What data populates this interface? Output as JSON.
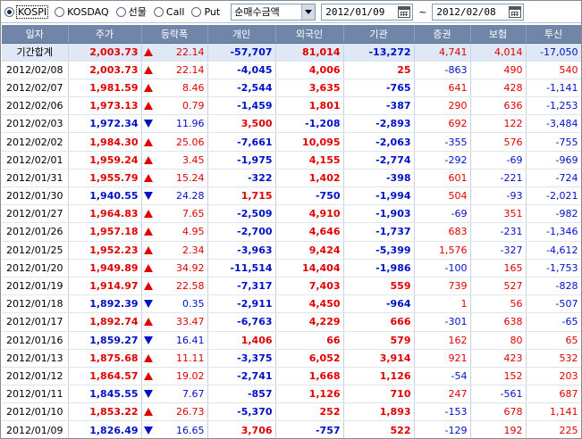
{
  "toolbar": {
    "radios": [
      {
        "label": "KOSPI",
        "selected": true
      },
      {
        "label": "KOSDAQ",
        "selected": false
      },
      {
        "label": "선물",
        "selected": false
      },
      {
        "label": "Call",
        "selected": false
      },
      {
        "label": "Put",
        "selected": false
      }
    ],
    "select_value": "순매수금액",
    "start_date": "2012/01/09",
    "tilde": "~",
    "end_date": "2012/02/08"
  },
  "colors": {
    "up": "#e00000",
    "down": "#0010c8",
    "header_bg": "#6f86a8",
    "total_bg": "#dfe8f5"
  },
  "table": {
    "headers": [
      "일자",
      "주가",
      "등락폭",
      "개인",
      "외국인",
      "기관",
      "증권",
      "보험",
      "투신"
    ],
    "rows": [
      {
        "date": "기간합계",
        "price": "2,003.73",
        "dir": "up",
        "change": "22.14",
        "personal": "-57,707",
        "foreign": "81,014",
        "inst": "-13,272",
        "sec": "4,741",
        "ins": "4,014",
        "trust": "-17,050",
        "total": true
      },
      {
        "date": "2012/02/08",
        "price": "2,003.73",
        "dir": "up",
        "change": "22.14",
        "personal": "-4,045",
        "foreign": "4,006",
        "inst": "25",
        "sec": "-863",
        "ins": "490",
        "trust": "540"
      },
      {
        "date": "2012/02/07",
        "price": "1,981.59",
        "dir": "up",
        "change": "8.46",
        "personal": "-2,544",
        "foreign": "3,635",
        "inst": "-765",
        "sec": "641",
        "ins": "428",
        "trust": "-1,141"
      },
      {
        "date": "2012/02/06",
        "price": "1,973.13",
        "dir": "up",
        "change": "0.79",
        "personal": "-1,459",
        "foreign": "1,801",
        "inst": "-387",
        "sec": "290",
        "ins": "636",
        "trust": "-1,253"
      },
      {
        "date": "2012/02/03",
        "price": "1,972.34",
        "dir": "down",
        "change": "11.96",
        "personal": "3,500",
        "foreign": "-1,208",
        "inst": "-2,893",
        "sec": "692",
        "ins": "122",
        "trust": "-3,484"
      },
      {
        "date": "2012/02/02",
        "price": "1,984.30",
        "dir": "up",
        "change": "25.06",
        "personal": "-7,661",
        "foreign": "10,095",
        "inst": "-2,063",
        "sec": "-355",
        "ins": "576",
        "trust": "-755"
      },
      {
        "date": "2012/02/01",
        "price": "1,959.24",
        "dir": "up",
        "change": "3.45",
        "personal": "-1,975",
        "foreign": "4,155",
        "inst": "-2,774",
        "sec": "-292",
        "ins": "-69",
        "trust": "-969"
      },
      {
        "date": "2012/01/31",
        "price": "1,955.79",
        "dir": "up",
        "change": "15.24",
        "personal": "-322",
        "foreign": "1,402",
        "inst": "-398",
        "sec": "601",
        "ins": "-221",
        "trust": "-724"
      },
      {
        "date": "2012/01/30",
        "price": "1,940.55",
        "dir": "down",
        "change": "24.28",
        "personal": "1,715",
        "foreign": "-750",
        "inst": "-1,994",
        "sec": "504",
        "ins": "-93",
        "trust": "-2,021"
      },
      {
        "date": "2012/01/27",
        "price": "1,964.83",
        "dir": "up",
        "change": "7.65",
        "personal": "-2,509",
        "foreign": "4,910",
        "inst": "-1,903",
        "sec": "-69",
        "ins": "351",
        "trust": "-982"
      },
      {
        "date": "2012/01/26",
        "price": "1,957.18",
        "dir": "up",
        "change": "4.95",
        "personal": "-2,700",
        "foreign": "4,646",
        "inst": "-1,737",
        "sec": "683",
        "ins": "-231",
        "trust": "-1,346"
      },
      {
        "date": "2012/01/25",
        "price": "1,952.23",
        "dir": "up",
        "change": "2.34",
        "personal": "-3,963",
        "foreign": "9,424",
        "inst": "-5,399",
        "sec": "1,576",
        "ins": "-327",
        "trust": "-4,612"
      },
      {
        "date": "2012/01/20",
        "price": "1,949.89",
        "dir": "up",
        "change": "34.92",
        "personal": "-11,514",
        "foreign": "14,404",
        "inst": "-1,986",
        "sec": "-100",
        "ins": "165",
        "trust": "-1,753"
      },
      {
        "date": "2012/01/19",
        "price": "1,914.97",
        "dir": "up",
        "change": "22.58",
        "personal": "-7,317",
        "foreign": "7,403",
        "inst": "559",
        "sec": "739",
        "ins": "527",
        "trust": "-828"
      },
      {
        "date": "2012/01/18",
        "price": "1,892.39",
        "dir": "down",
        "change": "0.35",
        "personal": "-2,911",
        "foreign": "4,450",
        "inst": "-964",
        "sec": "1",
        "ins": "56",
        "trust": "-507"
      },
      {
        "date": "2012/01/17",
        "price": "1,892.74",
        "dir": "up",
        "change": "33.47",
        "personal": "-6,763",
        "foreign": "4,229",
        "inst": "666",
        "sec": "-301",
        "ins": "638",
        "trust": "-65"
      },
      {
        "date": "2012/01/16",
        "price": "1,859.27",
        "dir": "down",
        "change": "16.41",
        "personal": "1,406",
        "foreign": "66",
        "inst": "579",
        "sec": "162",
        "ins": "80",
        "trust": "65"
      },
      {
        "date": "2012/01/13",
        "price": "1,875.68",
        "dir": "up",
        "change": "11.11",
        "personal": "-3,375",
        "foreign": "6,052",
        "inst": "3,914",
        "sec": "921",
        "ins": "423",
        "trust": "532"
      },
      {
        "date": "2012/01/12",
        "price": "1,864.57",
        "dir": "up",
        "change": "19.02",
        "personal": "-2,741",
        "foreign": "1,668",
        "inst": "1,126",
        "sec": "-54",
        "ins": "152",
        "trust": "203"
      },
      {
        "date": "2012/01/11",
        "price": "1,845.55",
        "dir": "down",
        "change": "7.67",
        "personal": "-857",
        "foreign": "1,126",
        "inst": "710",
        "sec": "247",
        "ins": "-561",
        "trust": "687"
      },
      {
        "date": "2012/01/10",
        "price": "1,853.22",
        "dir": "up",
        "change": "26.73",
        "personal": "-5,370",
        "foreign": "252",
        "inst": "1,893",
        "sec": "-153",
        "ins": "678",
        "trust": "1,141"
      },
      {
        "date": "2012/01/09",
        "price": "1,826.49",
        "dir": "down",
        "change": "16.65",
        "personal": "3,706",
        "foreign": "-757",
        "inst": "522",
        "sec": "-129",
        "ins": "192",
        "trust": "225"
      }
    ]
  }
}
